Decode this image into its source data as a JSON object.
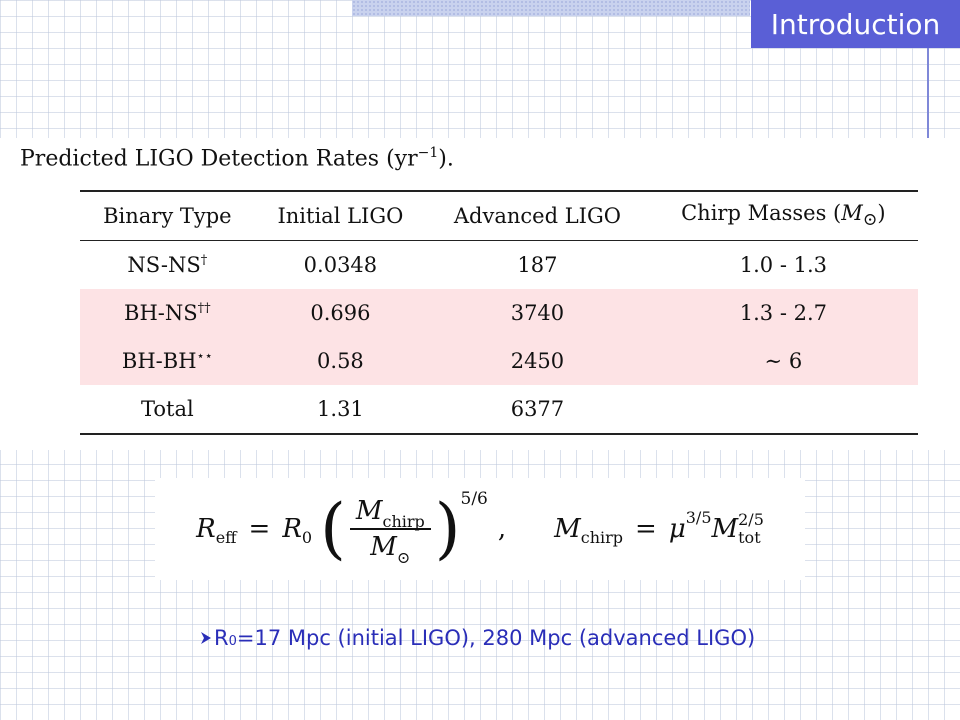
{
  "slide": {
    "title": "Introduction",
    "colors": {
      "title_bg": "#5a5fd6",
      "title_text": "#ffffff",
      "accent_text": "#2a2eb8",
      "highlight_row": "#fde3e5"
    }
  },
  "table": {
    "caption": "Predicted LIGO Detection Rates (yr",
    "caption_exp": "−1",
    "caption_end": ").",
    "headers": [
      "Binary Type",
      "Initial LIGO",
      "Advanced LIGO",
      "Chirp Masses ("
    ],
    "header_mass_symbol": "M",
    "header_mass_sub": "⊙",
    "header_mass_close": ")",
    "rows": [
      {
        "type": "NS-NS",
        "mark": "†",
        "initial": "0.0348",
        "advanced": "187",
        "chirp": "1.0 - 1.3"
      },
      {
        "type": "BH-NS",
        "mark": "††",
        "initial": "0.696",
        "advanced": "3740",
        "chirp": "1.3 - 2.7"
      },
      {
        "type": "BH-BH",
        "mark": "⋆⋆",
        "initial": "0.58",
        "advanced": "2450",
        "chirp": "∼ 6"
      },
      {
        "type": "Total",
        "mark": "",
        "initial": "1.31",
        "advanced": "6377",
        "chirp": ""
      }
    ]
  },
  "formula": {
    "reff": "R",
    "reff_sub": "eff",
    "equals": "=",
    "r0": "R",
    "r0_sub": "0",
    "frac_num": "M",
    "frac_num_sub": "chirp",
    "frac_den": "M",
    "frac_den_sub": "⊙",
    "paren_open": "(",
    "paren_close": ")",
    "exponent": "5/6",
    "comma": ",",
    "mchirp": "M",
    "mchirp_sub": "chirp",
    "equals2": "=",
    "mu": "μ",
    "mu_exp": "3/5",
    "mtot": "M",
    "mtot_exp": "2/5",
    "mtot_sub": "tot"
  },
  "bullet": {
    "prefix": "R",
    "prefix_sub": "0",
    "text": "=17 Mpc (initial LIGO), 280 Mpc (advanced LIGO)"
  }
}
